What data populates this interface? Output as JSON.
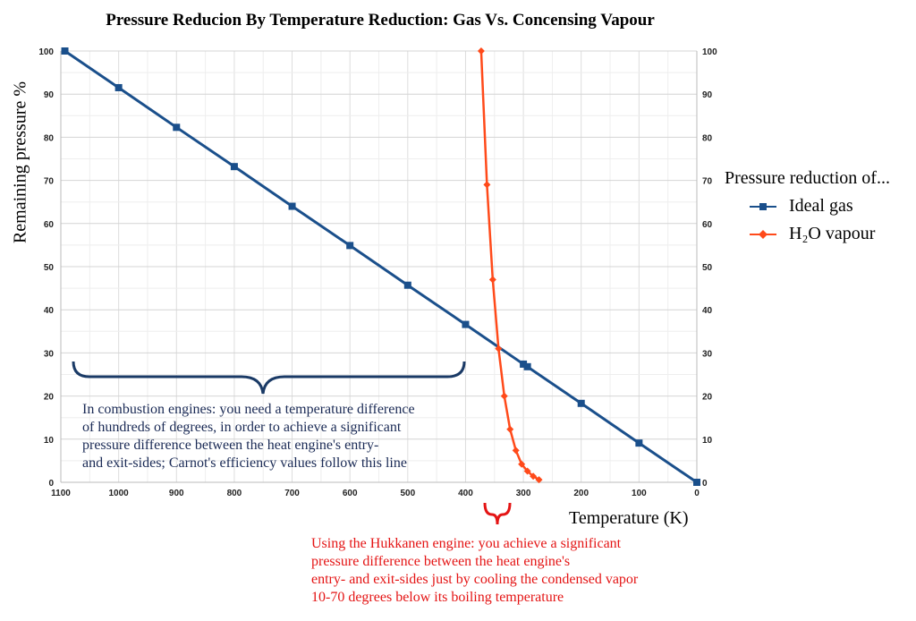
{
  "chart_data": {
    "type": "line",
    "title": "Pressure Reducion By Temperature Reduction: Gas Vs. Concensing Vapour",
    "xlabel": "Temperature (K)",
    "ylabel": "Remaining pressure  %",
    "xlim": [
      1100,
      0
    ],
    "x_reversed": true,
    "ylim": [
      0,
      100
    ],
    "x_ticks": [
      "1100",
      "1000",
      "900",
      "800",
      "700",
      "600",
      "500",
      "400",
      "300",
      "200",
      "100",
      "0"
    ],
    "y_ticks": [
      "0",
      "10",
      "20",
      "30",
      "40",
      "50",
      "60",
      "70",
      "80",
      "90",
      "100"
    ],
    "grid": true,
    "legend_title": "Pressure reduction of...",
    "legend_position": "right",
    "series": [
      {
        "name": "Ideal gas",
        "color": "#1a4f8b",
        "marker": "square",
        "x": [
          1093,
          1000,
          900,
          800,
          700,
          600,
          500,
          400,
          300,
          293,
          200,
          100,
          0
        ],
        "y": [
          100,
          91.5,
          82.3,
          73.2,
          64.0,
          54.9,
          45.7,
          36.6,
          27.4,
          26.8,
          18.3,
          9.1,
          0
        ]
      },
      {
        "name": "H₂O vapour",
        "color": "#ff4a1a",
        "marker": "diamond",
        "x": [
          373,
          363,
          353,
          343,
          333,
          323,
          313,
          303,
          293,
          283,
          273
        ],
        "y": [
          100,
          69.0,
          47.0,
          31.0,
          20.0,
          12.3,
          7.4,
          4.2,
          2.6,
          1.4,
          0.6
        ]
      }
    ],
    "annotations": [
      {
        "text": [
          "In combustion engines: you need a temperature difference",
          "of hundreds of degrees, in order to achieve a significant",
          "pressure difference between the heat engine's entry-",
          "and exit-sides; Carnot's efficiency values follow this line"
        ],
        "color": "#1a2a55"
      },
      {
        "text": [
          "Using the Hukkanen engine: you achieve a significant",
          "pressure difference between the heat engine's",
          "entry- and exit-sides just by cooling the condensed vapor",
          "10-70 degrees below its boiling temperature"
        ],
        "color": "#e41414"
      }
    ]
  }
}
